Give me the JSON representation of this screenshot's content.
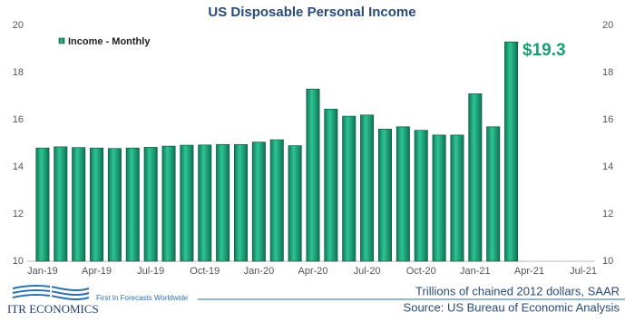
{
  "chart_data": {
    "type": "bar",
    "title": "US Disposable Personal Income",
    "categories": [
      "Jan-19",
      null,
      null,
      "Apr-19",
      null,
      null,
      "Jul-19",
      null,
      null,
      "Oct-19",
      null,
      null,
      "Jan-20",
      null,
      null,
      "Apr-20",
      null,
      null,
      "Jul-20",
      null,
      null,
      "Oct-20",
      null,
      null,
      "Jan-21",
      null,
      null,
      "Apr-21",
      null,
      null,
      "Jul-21"
    ],
    "series": [
      {
        "name": "Income - Monthly",
        "color": "#1aa37a",
        "values": [
          14.8,
          14.85,
          14.82,
          14.8,
          14.78,
          14.8,
          14.83,
          14.88,
          14.92,
          14.93,
          14.95,
          14.95,
          15.05,
          15.15,
          14.9,
          17.3,
          16.45,
          16.15,
          16.2,
          15.6,
          15.7,
          15.55,
          15.35,
          15.35,
          17.1,
          15.7,
          19.3,
          null,
          null,
          null,
          null
        ]
      }
    ],
    "annotation": "$19.3",
    "ylim": [
      10,
      20
    ],
    "yticks": [
      10,
      12,
      14,
      16,
      18,
      20
    ],
    "y2lim": [
      10,
      20
    ],
    "y2ticks": [
      10,
      12,
      14,
      16,
      18,
      20
    ],
    "legend": "top-left",
    "units_note": "Trillions of chained 2012 dollars, SAAR",
    "source": "Source: US Bureau of Economic Analysis",
    "brand": "ITR ECONOMICS",
    "tagline": "First In Forecasts Worldwide"
  }
}
